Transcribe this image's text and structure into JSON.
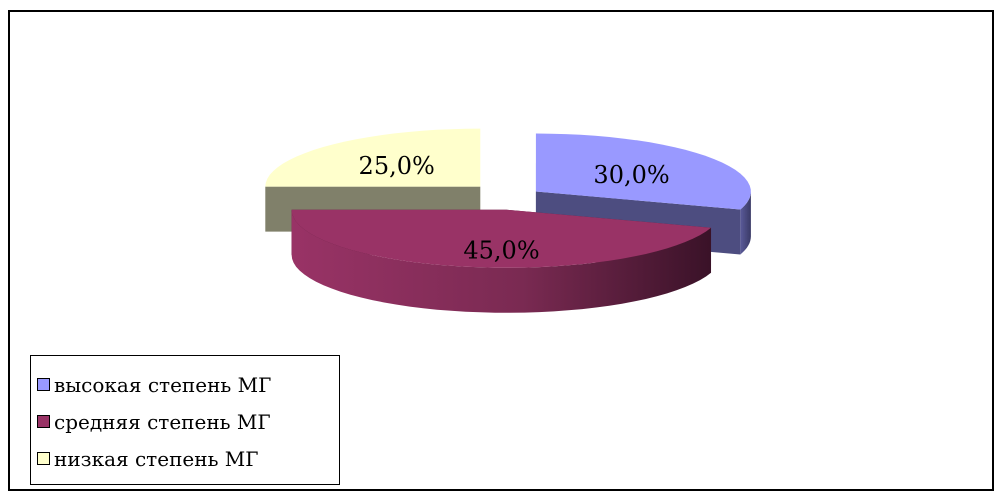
{
  "chart_data": {
    "type": "pie",
    "style": "3d-exploded",
    "categories": [
      "высокая степень МГ",
      "средняя степень МГ",
      "низкая степень МГ"
    ],
    "values": [
      30.0,
      45.0,
      25.0
    ],
    "labels": [
      "30,0%",
      "45,0%",
      "25,0%"
    ],
    "colors": [
      "#9999ff",
      "#993366",
      "#ffffcc"
    ],
    "side_colors": [
      "#4d4d80",
      "#4d1a33",
      "#80806a"
    ],
    "legend_position": "bottom-left"
  },
  "legend": {
    "items": [
      {
        "label": "высокая степень МГ",
        "color": "#9999ff"
      },
      {
        "label": "средняя  степень МГ",
        "color": "#993366"
      },
      {
        "label": "низкая  степень МГ",
        "color": "#ffffcc"
      }
    ]
  }
}
